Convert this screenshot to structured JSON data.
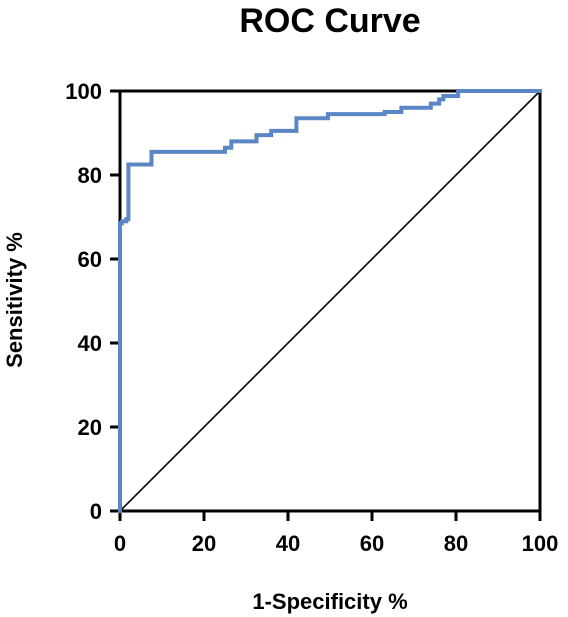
{
  "chart_data": {
    "type": "line",
    "title": "ROC Curve",
    "xlabel": "1-Specificity %",
    "ylabel": "Sensitivity %",
    "xlim": [
      0,
      100
    ],
    "ylim": [
      0,
      100
    ],
    "xticks": [
      0,
      20,
      40,
      60,
      80,
      100
    ],
    "yticks": [
      0,
      20,
      40,
      60,
      80,
      100
    ],
    "grid": false,
    "series": [
      {
        "color": "#5b86c5",
        "x": [
          0,
          0,
          0.5,
          0.5,
          1.5,
          1.5,
          2,
          2,
          7.5,
          7.5,
          25,
          25,
          26.5,
          26.5,
          32.5,
          32.5,
          36,
          36,
          42,
          42,
          43.5,
          43.5,
          49.5,
          49.5,
          63,
          63,
          67,
          67,
          74,
          74,
          76,
          76,
          77,
          77,
          80.5,
          80.5,
          100
        ],
        "y": [
          0,
          68.5,
          68.5,
          69,
          69,
          69.5,
          69.5,
          82.5,
          82.5,
          85.5,
          85.5,
          86.5,
          86.5,
          88,
          88,
          89.5,
          89.5,
          90.5,
          90.5,
          93.5,
          93.5,
          93.5,
          93.5,
          94.5,
          94.5,
          95,
          95,
          96,
          96,
          97,
          97,
          98,
          98,
          98.8,
          98.8,
          100,
          100
        ]
      },
      {
        "color": "#000000",
        "x": [
          0,
          100
        ],
        "y": [
          0,
          100
        ]
      }
    ]
  }
}
